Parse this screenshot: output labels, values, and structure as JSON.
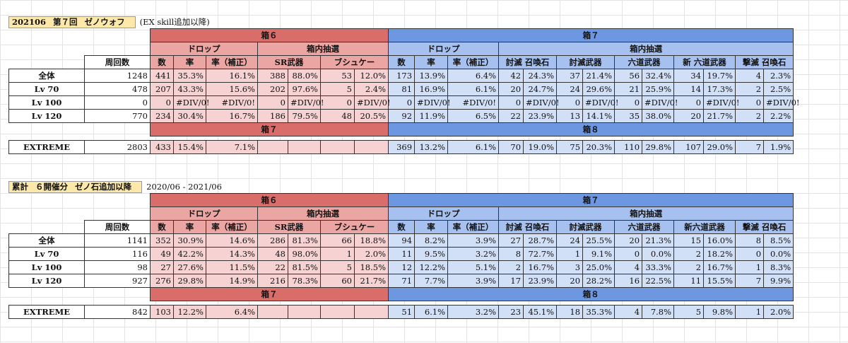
{
  "section1": {
    "title_parts": [
      "202106",
      "第７回",
      "ゼノウォフ"
    ],
    "note": "(EX skill追加以降)",
    "box_a": "箱６",
    "box_b": "箱７",
    "box_c": "箱７",
    "box_d": "箱８",
    "sub_a": [
      "ドロップ",
      "箱内抽選"
    ],
    "sub_b": [
      "ドロップ",
      "箱内抽選"
    ],
    "runs_label": "周回数",
    "cols_a": [
      "数",
      "率",
      "率（補正）",
      "SR武器",
      "ブシュケー"
    ],
    "cols_b": [
      "数",
      "率",
      "率（補正）",
      "討滅 召喚石",
      "討滅武器",
      "六道武器",
      "新 六道武器",
      "撃滅 召喚石"
    ],
    "rows": [
      {
        "label": "全体",
        "runs": "1248",
        "a": [
          "441",
          "35.3%",
          "16.1%",
          "388",
          "88.0%",
          "53",
          "12.0%"
        ],
        "b": [
          "173",
          "13.9%",
          "6.4%",
          "42",
          "24.3%",
          "37",
          "21.4%",
          "56",
          "32.4%",
          "34",
          "19.7%",
          "4",
          "2.3%"
        ]
      },
      {
        "label": "Lv 70",
        "runs": "478",
        "a": [
          "207",
          "43.3%",
          "15.6%",
          "202",
          "97.6%",
          "5",
          "2.4%"
        ],
        "b": [
          "81",
          "16.9%",
          "6.1%",
          "20",
          "24.7%",
          "24",
          "29.6%",
          "21",
          "25.9%",
          "14",
          "17.3%",
          "2",
          "2.5%"
        ]
      },
      {
        "label": "Lv 100",
        "runs": "0",
        "a": [
          "0",
          "#DIV/0!",
          "#DIV/0!",
          "0",
          "#DIV/0!",
          "0",
          "#DIV/0!"
        ],
        "b": [
          "0",
          "#DIV/0!",
          "#DIV/0!",
          "0",
          "#DIV/0!",
          "0",
          "#DIV/0!",
          "0",
          "#DIV/0!",
          "0",
          "#DIV/0!",
          "0",
          "#DIV/0!"
        ]
      },
      {
        "label": "Lv 120",
        "runs": "770",
        "a": [
          "234",
          "30.4%",
          "16.7%",
          "186",
          "79.5%",
          "48",
          "20.5%"
        ],
        "b": [
          "92",
          "11.9%",
          "6.5%",
          "22",
          "23.9%",
          "13",
          "14.1%",
          "35",
          "38.0%",
          "20",
          "21.7%",
          "2",
          "2.2%"
        ]
      }
    ],
    "extreme": {
      "label": "EXTREME",
      "runs": "2803",
      "a": [
        "433",
        "15.4%",
        "7.1%",
        "",
        "",
        "",
        ""
      ],
      "b": [
        "369",
        "13.2%",
        "6.1%",
        "70",
        "19.0%",
        "75",
        "20.3%",
        "110",
        "29.8%",
        "107",
        "29.0%",
        "7",
        "1.9%"
      ]
    }
  },
  "section2": {
    "title_parts": [
      "累計",
      "６開催分",
      "ゼノ石追加以降"
    ],
    "note": "2020/06 - 2021/06",
    "box_a": "箱６",
    "box_b": "箱７",
    "box_c": "箱７",
    "box_d": "箱８",
    "sub_a": [
      "ドロップ",
      "箱内抽選"
    ],
    "sub_b": [
      "ドロップ",
      "箱内抽選"
    ],
    "runs_label": "周回数",
    "cols_a": [
      "数",
      "率",
      "率（補正）",
      "SR武器",
      "ブシュケー"
    ],
    "cols_b": [
      "数",
      "率",
      "率（補正）",
      "討滅 召喚石",
      "討滅武器",
      "六道武器",
      "新六道武器",
      "撃滅 召喚石"
    ],
    "rows": [
      {
        "label": "全体",
        "runs": "1141",
        "a": [
          "352",
          "30.9%",
          "14.6%",
          "286",
          "81.3%",
          "66",
          "18.8%"
        ],
        "b": [
          "94",
          "8.2%",
          "3.9%",
          "27",
          "28.7%",
          "24",
          "25.5%",
          "20",
          "21.3%",
          "15",
          "16.0%",
          "8",
          "8.5%"
        ]
      },
      {
        "label": "Lv 70",
        "runs": "116",
        "a": [
          "49",
          "42.2%",
          "14.3%",
          "48",
          "98.0%",
          "1",
          "2.0%"
        ],
        "b": [
          "11",
          "9.5%",
          "3.2%",
          "8",
          "72.7%",
          "1",
          "9.1%",
          "0",
          "0.0%",
          "2",
          "18.2%",
          "0",
          "0.0%"
        ]
      },
      {
        "label": "Lv 100",
        "runs": "98",
        "a": [
          "27",
          "27.6%",
          "11.5%",
          "22",
          "81.5%",
          "5",
          "18.5%"
        ],
        "b": [
          "12",
          "12.2%",
          "5.1%",
          "2",
          "16.7%",
          "3",
          "25.0%",
          "4",
          "33.3%",
          "2",
          "16.7%",
          "1",
          "8.3%"
        ]
      },
      {
        "label": "Lv 120",
        "runs": "927",
        "a": [
          "276",
          "29.8%",
          "14.9%",
          "216",
          "78.3%",
          "60",
          "21.7%"
        ],
        "b": [
          "71",
          "7.7%",
          "3.9%",
          "17",
          "23.9%",
          "20",
          "28.2%",
          "16",
          "22.5%",
          "11",
          "15.5%",
          "7",
          "9.9%"
        ]
      }
    ],
    "extreme": {
      "label": "EXTREME",
      "runs": "842",
      "a": [
        "103",
        "12.2%",
        "6.4%",
        "",
        "",
        "",
        ""
      ],
      "b": [
        "51",
        "6.1%",
        "3.2%",
        "23",
        "45.1%",
        "18",
        "35.3%",
        "4",
        "7.8%",
        "5",
        "9.8%",
        "1",
        "2.0%"
      ]
    }
  }
}
